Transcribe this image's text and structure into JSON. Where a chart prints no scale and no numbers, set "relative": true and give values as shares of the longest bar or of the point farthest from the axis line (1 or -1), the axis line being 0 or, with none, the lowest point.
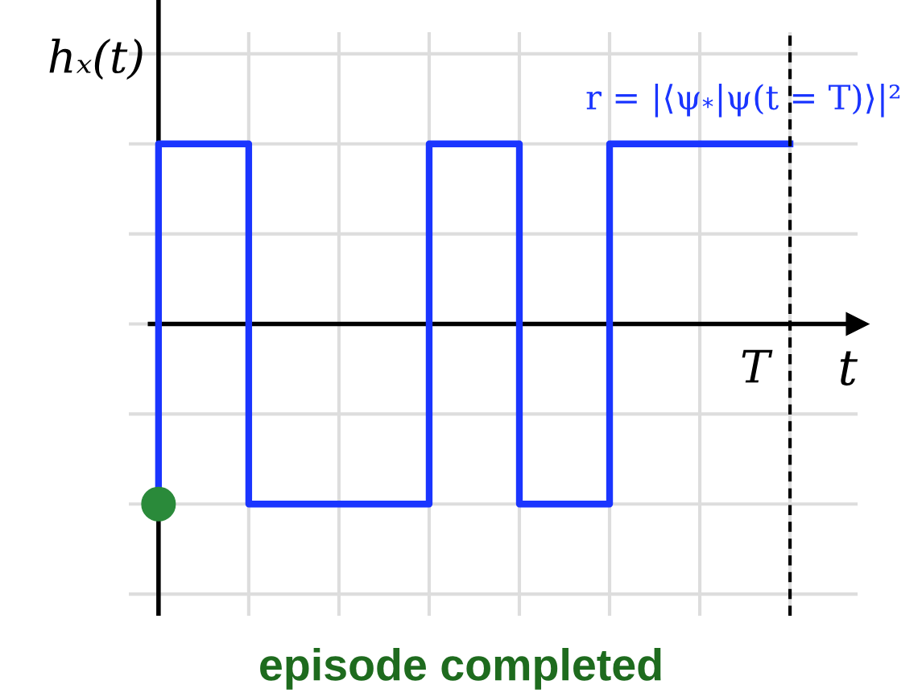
{
  "chart_data": {
    "type": "step",
    "relative": true,
    "xlabel": "t",
    "ylabel": "hₓ(t)",
    "categories": [
      null,
      null,
      null,
      null,
      null,
      null,
      null,
      null
    ],
    "series": [
      {
        "color": "#1a35ff",
        "values": [
          -1,
          1,
          -1,
          -1,
          1,
          -1,
          1,
          1
        ]
      }
    ],
    "grid": true,
    "tick_labels": false,
    "annotations": [
      "r = |⟨ψ$_{*}$|ψ(t = T)⟩|²",
      "T",
      "episode completed"
    ]
  }
}
